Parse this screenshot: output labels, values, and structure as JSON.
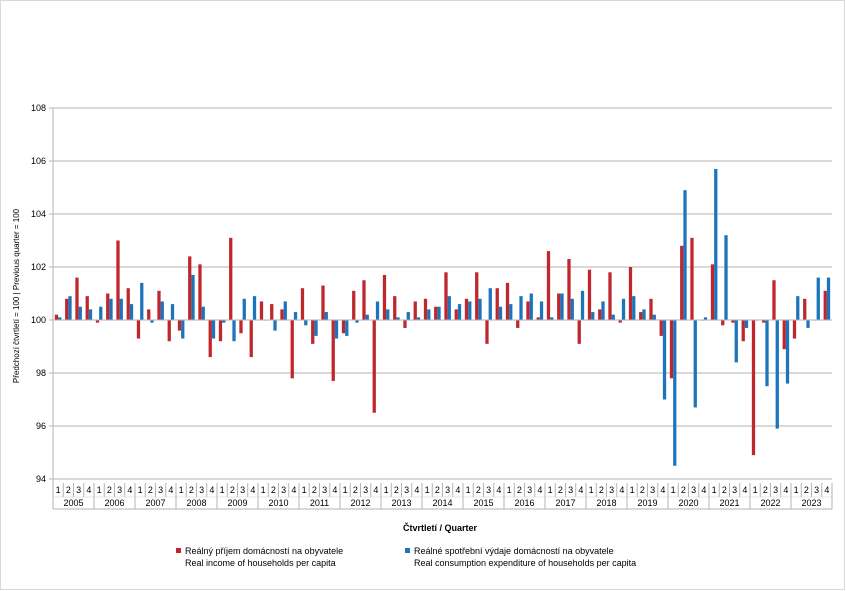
{
  "chart_data": {
    "type": "bar",
    "xlabel": "Čtvrtletí / Quarter",
    "ylabel": "Předchozí čtvrtletí = 100 | Previous quarter = 100",
    "ylim": [
      94,
      108
    ],
    "yticks": [
      94,
      96,
      98,
      100,
      102,
      104,
      106,
      108
    ],
    "baseline": 100,
    "grid": true,
    "legend_position": "bottom",
    "quarters": [
      "1",
      "2",
      "3",
      "4"
    ],
    "years": [
      "2005",
      "2006",
      "2007",
      "2008",
      "2009",
      "2010",
      "2011",
      "2012",
      "2013",
      "2014",
      "2015",
      "2016",
      "2017",
      "2018",
      "2019",
      "2020",
      "2021",
      "2022",
      "2023"
    ],
    "series": [
      {
        "name": "Reálný příjem domácností na obyvatele",
        "name_en": "Real income of households per capita",
        "color": "#c0272d",
        "values": [
          100.2,
          100.8,
          101.6,
          100.9,
          99.9,
          101.0,
          103.0,
          101.2,
          99.3,
          100.4,
          101.1,
          99.2,
          99.6,
          102.4,
          102.1,
          98.6,
          99.2,
          103.1,
          99.5,
          98.6,
          100.7,
          100.6,
          100.4,
          97.8,
          101.2,
          99.1,
          101.3,
          97.7,
          99.5,
          101.1,
          101.5,
          96.5,
          101.7,
          100.9,
          99.7,
          100.7,
          100.8,
          100.5,
          101.8,
          100.4,
          100.8,
          101.8,
          99.1,
          101.2,
          101.4,
          99.7,
          100.7,
          100.1,
          102.6,
          101.0,
          102.3,
          99.1,
          101.9,
          100.4,
          101.8,
          99.9,
          102.0,
          100.3,
          100.8,
          99.4,
          97.8,
          102.8,
          103.1,
          100.0,
          102.1,
          99.8,
          99.9,
          99.2,
          94.9,
          99.9,
          101.5,
          98.9,
          99.3,
          100.8,
          100.0,
          101.1
        ]
      },
      {
        "name": "Reálné spotřební výdaje domácností na obyvatele",
        "name_en": "Real consumption expenditure of households per capita",
        "color": "#1c75bc",
        "values": [
          100.1,
          100.9,
          100.5,
          100.4,
          100.5,
          100.8,
          100.8,
          100.6,
          101.4,
          99.9,
          100.7,
          100.6,
          99.3,
          101.7,
          100.5,
          99.3,
          99.9,
          99.2,
          100.8,
          100.9,
          100.0,
          99.6,
          100.7,
          100.3,
          99.8,
          99.4,
          100.3,
          99.3,
          99.4,
          99.9,
          100.2,
          100.7,
          100.4,
          100.1,
          100.3,
          100.1,
          100.4,
          100.5,
          100.9,
          100.6,
          100.7,
          100.8,
          101.2,
          100.5,
          100.6,
          100.9,
          101.0,
          100.7,
          100.1,
          101.0,
          100.8,
          101.1,
          100.3,
          100.7,
          100.2,
          100.8,
          100.9,
          100.4,
          100.2,
          97.0,
          94.5,
          104.9,
          96.7,
          100.1,
          105.7,
          103.2,
          98.4,
          99.7,
          100.0,
          97.5,
          95.9,
          97.6,
          100.9,
          99.7,
          101.6,
          101.6
        ]
      }
    ]
  }
}
